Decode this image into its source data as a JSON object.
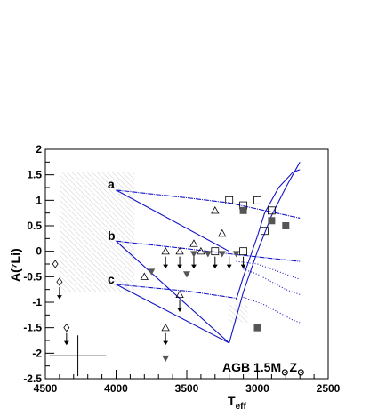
{
  "chart_data": {
    "type": "scatter",
    "title": "",
    "xlabel": "T",
    "xlabel_subscript": "eff",
    "ylabel": "A(⁷Li)",
    "xlim": [
      4500,
      2500
    ],
    "ylim": [
      -2.5,
      2
    ],
    "x_reversed": true,
    "grid": false,
    "x_ticks": [
      "4500",
      "4000",
      "3500",
      "3000",
      "2500"
    ],
    "y_ticks": [
      "2",
      "1.5",
      "1",
      "0.5",
      "0",
      "-0.5",
      "-1",
      "-1.5",
      "-2",
      "-2.5"
    ],
    "annotation": {
      "main": "AGB 1.5M",
      "sub1": "⊙",
      "mid": "Z",
      "sub2": "⊙"
    },
    "curve_labels": [
      "a",
      "b",
      "c"
    ],
    "shaded_region": {
      "x": [
        4400,
        3870
      ],
      "y": [
        -0.8,
        1.55
      ]
    },
    "shaded_region_small": {
      "x": [
        3200,
        3070
      ],
      "y": [
        -1.4,
        -1.05
      ]
    },
    "models": {
      "color": "#1515c8",
      "upper_tracks": [
        {
          "name": "a",
          "points": [
            [
              4000,
              1.2
            ],
            [
              3500,
              1.05
            ],
            [
              3200,
              0.95
            ],
            [
              2700,
              0.65
            ]
          ]
        },
        {
          "name": "b",
          "points": [
            [
              4000,
              0.2
            ],
            [
              3500,
              0.05
            ],
            [
              3200,
              -0.05
            ],
            [
              2700,
              -0.2
            ]
          ]
        },
        {
          "name": "c",
          "points": [
            [
              4000,
              -0.65
            ],
            [
              3500,
              -0.78
            ],
            [
              3200,
              -0.9
            ],
            [
              3150,
              -0.92
            ]
          ]
        }
      ],
      "converge_lines": [
        [
          [
            4000,
            1.2
          ],
          [
            3200,
            0.0
          ]
        ],
        [
          [
            4000,
            0.2
          ],
          [
            3200,
            -1.8
          ]
        ],
        [
          [
            4000,
            -0.65
          ],
          [
            3200,
            -1.8
          ]
        ]
      ],
      "lower_line": [
        [
          3200,
          -1.8
        ],
        [
          3150,
          -1.3
        ],
        [
          3100,
          -0.8
        ],
        [
          3000,
          0.0
        ],
        [
          2900,
          0.7
        ],
        [
          2800,
          1.25
        ],
        [
          2700,
          1.75
        ]
      ],
      "upper_rising_line": [
        [
          3150,
          -0.95
        ],
        [
          3100,
          -0.5
        ],
        [
          3000,
          0.3
        ],
        [
          2950,
          0.75
        ],
        [
          2850,
          1.25
        ],
        [
          2750,
          1.55
        ],
        [
          2700,
          1.6
        ]
      ],
      "dotted_tracks": [
        [
          [
            3150,
            -0.2
          ],
          [
            3000,
            -0.25
          ],
          [
            2900,
            -0.35
          ],
          [
            2800,
            -0.45
          ],
          [
            2700,
            -0.55
          ]
        ],
        [
          [
            3100,
            -0.35
          ],
          [
            3000,
            -0.45
          ],
          [
            2900,
            -0.6
          ],
          [
            2800,
            -0.75
          ],
          [
            2700,
            -0.85
          ]
        ],
        [
          [
            3100,
            -0.9
          ],
          [
            2950,
            -1.05
          ],
          [
            2850,
            -1.2
          ],
          [
            2750,
            -1.35
          ],
          [
            2700,
            -1.4
          ]
        ]
      ]
    },
    "series": [
      {
        "name": "",
        "marker": "open-triangle",
        "points": [
          [
            3650,
            -1.5
          ],
          [
            3650,
            0.0
          ],
          [
            3550,
            0.0
          ],
          [
            3450,
            0.15
          ],
          [
            3250,
            0.35
          ],
          [
            3300,
            0.8
          ],
          [
            3400,
            0.0
          ],
          [
            3800,
            -0.5
          ],
          [
            3550,
            -0.85
          ]
        ]
      },
      {
        "name": "",
        "marker": "filled-triangle-down",
        "points": [
          [
            3750,
            -0.4
          ],
          [
            3500,
            -0.45
          ],
          [
            3450,
            -0.05
          ],
          [
            3350,
            -0.05
          ],
          [
            3250,
            -0.05
          ],
          [
            3150,
            -0.05
          ],
          [
            3650,
            -2.1
          ]
        ]
      },
      {
        "name": "",
        "marker": "open-square",
        "points": [
          [
            3200,
            1.0
          ],
          [
            3100,
            0.9
          ],
          [
            3000,
            1.0
          ],
          [
            3300,
            0.0
          ],
          [
            3100,
            0.0
          ],
          [
            2950,
            0.4
          ],
          [
            2900,
            0.8
          ]
        ]
      },
      {
        "name": "",
        "marker": "filled-square",
        "points": [
          [
            3100,
            0.8
          ],
          [
            2900,
            0.6
          ],
          [
            2800,
            0.5
          ],
          [
            3000,
            -1.5
          ]
        ]
      },
      {
        "name": "",
        "marker": "open-diamond",
        "points": [
          [
            4430,
            -0.25
          ],
          [
            4400,
            -0.6
          ],
          [
            4350,
            -1.5
          ]
        ]
      }
    ],
    "upper_limits": [
      [
        4400,
        -0.6
      ],
      [
        4350,
        -1.5
      ],
      [
        3650,
        -1.5
      ],
      [
        3650,
        0.0
      ],
      [
        3550,
        0.0
      ],
      [
        3450,
        0.0
      ],
      [
        3300,
        0.0
      ],
      [
        3200,
        0.0
      ],
      [
        3100,
        0.0
      ],
      [
        3550,
        -0.85
      ]
    ],
    "error_bar": {
      "x": 4270,
      "y": -2.05,
      "dx": 200,
      "dy": 0.4
    }
  }
}
